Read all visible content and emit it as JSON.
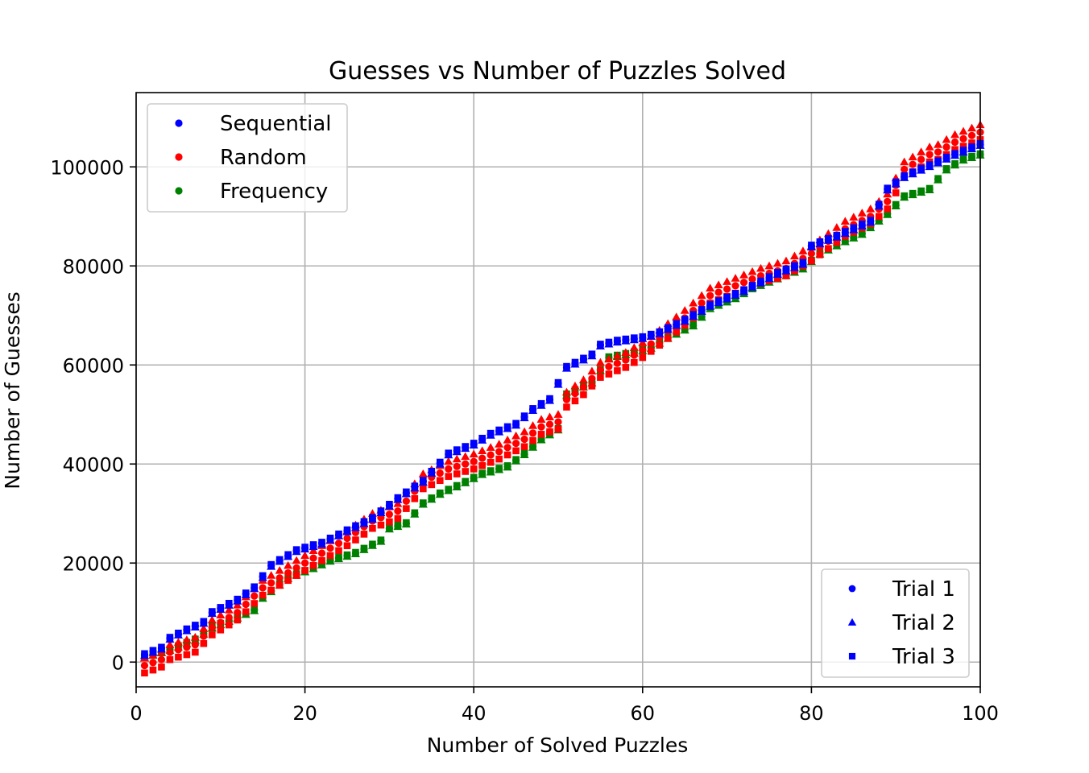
{
  "chart_data": {
    "type": "scatter",
    "title": "Guesses vs Number of Puzzles Solved",
    "xlabel": "Number of Solved Puzzles",
    "ylabel": "Number of Guesses",
    "xlim": [
      0,
      100
    ],
    "ylim": [
      -5000,
      115000
    ],
    "xticks": [
      "0",
      "20",
      "40",
      "60",
      "80",
      "100"
    ],
    "yticks": [
      "0",
      "20000",
      "40000",
      "60000",
      "80000",
      "100000"
    ],
    "xtick_values": [
      0,
      20,
      40,
      60,
      80,
      100
    ],
    "ytick_values": [
      0,
      20000,
      40000,
      60000,
      80000,
      100000
    ],
    "grid": true,
    "colors": {
      "Sequential": "#0000ff",
      "Random": "#ff0000",
      "Frequency": "#008000"
    },
    "markers": {
      "Trial 1": "circle",
      "Trial 2": "triangle",
      "Trial 3": "square"
    },
    "legend_methods": {
      "position": "top-left",
      "entries": [
        "Sequential",
        "Random",
        "Frequency"
      ]
    },
    "legend_trials": {
      "position": "bottom-right",
      "entries": [
        "Trial 1",
        "Trial 2",
        "Trial 3"
      ]
    },
    "anchors": {
      "Sequential": [
        [
          1,
          1500
        ],
        [
          3,
          2800
        ],
        [
          4,
          4800
        ],
        [
          6,
          6500
        ],
        [
          8,
          8000
        ],
        [
          9,
          10000
        ],
        [
          12,
          12500
        ],
        [
          14,
          15000
        ],
        [
          16,
          19500
        ],
        [
          19,
          22500
        ],
        [
          22,
          24000
        ],
        [
          25,
          26500
        ],
        [
          28,
          29000
        ],
        [
          31,
          33000
        ],
        [
          34,
          36500
        ],
        [
          37,
          42000
        ],
        [
          40,
          44000
        ],
        [
          42,
          46000
        ],
        [
          45,
          48000
        ],
        [
          47,
          51000
        ],
        [
          49,
          53000
        ],
        [
          51,
          59500
        ],
        [
          54,
          62000
        ],
        [
          55,
          64000
        ],
        [
          57,
          64800
        ],
        [
          60,
          65500
        ],
        [
          62,
          66500
        ],
        [
          65,
          69000
        ],
        [
          68,
          72000
        ],
        [
          72,
          75000
        ],
        [
          76,
          78500
        ],
        [
          79,
          80500
        ],
        [
          80,
          84000
        ],
        [
          83,
          86000
        ],
        [
          87,
          89000
        ],
        [
          89,
          95500
        ],
        [
          91,
          98000
        ],
        [
          95,
          101000
        ],
        [
          97,
          102500
        ],
        [
          100,
          104500
        ]
      ],
      "Random": [
        [
          1,
          800
        ],
        [
          3,
          2000
        ],
        [
          4,
          3500
        ],
        [
          7,
          5000
        ],
        [
          9,
          8500
        ],
        [
          12,
          11500
        ],
        [
          15,
          16500
        ],
        [
          18,
          19500
        ],
        [
          21,
          22500
        ],
        [
          25,
          26500
        ],
        [
          28,
          30000
        ],
        [
          31,
          32000
        ],
        [
          34,
          38000
        ],
        [
          37,
          40500
        ],
        [
          40,
          42000
        ],
        [
          43,
          44000
        ],
        [
          46,
          46500
        ],
        [
          48,
          49000
        ],
        [
          50,
          50000
        ],
        [
          51,
          54500
        ],
        [
          53,
          57000
        ],
        [
          55,
          60500
        ],
        [
          58,
          62500
        ],
        [
          60,
          64500
        ],
        [
          62,
          67000
        ],
        [
          65,
          71000
        ],
        [
          68,
          75500
        ],
        [
          71,
          77500
        ],
        [
          74,
          79500
        ],
        [
          77,
          81000
        ],
        [
          80,
          84000
        ],
        [
          82,
          86500
        ],
        [
          84,
          89000
        ],
        [
          87,
          91500
        ],
        [
          89,
          94500
        ],
        [
          91,
          101000
        ],
        [
          94,
          104000
        ],
        [
          95,
          104500
        ],
        [
          97,
          106500
        ],
        [
          100,
          108500
        ]
      ]
    },
    "series": [
      {
        "name": "Sequential",
        "trial": "Trial 1",
        "offset": 0,
        "values_ref": "Sequential"
      },
      {
        "name": "Sequential",
        "trial": "Trial 2",
        "offset": -200,
        "values_ref": "Sequential"
      },
      {
        "name": "Sequential",
        "trial": "Trial 3",
        "offset": 200,
        "values_ref": "Sequential"
      },
      {
        "name": "Random",
        "trial": "Trial 1",
        "offset": -1500,
        "values_ref": "Random"
      },
      {
        "name": "Random",
        "trial": "Trial 2",
        "offset": 0,
        "values_ref": "Random"
      },
      {
        "name": "Random",
        "trial": "Trial 3",
        "offset": -3000,
        "values_ref": "Random"
      },
      {
        "name": "Frequency",
        "trial": "Trial 1",
        "offset": 0,
        "values_ref": "Frequency"
      },
      {
        "name": "Frequency",
        "trial": "Trial 2",
        "offset": -150,
        "values_ref": "Frequency"
      },
      {
        "name": "Frequency",
        "trial": "Trial 3",
        "offset": 150,
        "values_ref": "Frequency"
      }
    ],
    "frequency_anchors": [
      [
        1,
        1000
      ],
      [
        4,
        2500
      ],
      [
        7,
        4500
      ],
      [
        9,
        7000
      ],
      [
        12,
        9000
      ],
      [
        14,
        10500
      ],
      [
        15,
        13000
      ],
      [
        18,
        17000
      ],
      [
        21,
        19000
      ],
      [
        23,
        20500
      ],
      [
        26,
        22000
      ],
      [
        29,
        24500
      ],
      [
        30,
        27000
      ],
      [
        32,
        28000
      ],
      [
        34,
        32000
      ],
      [
        36,
        34000
      ],
      [
        38,
        35500
      ],
      [
        41,
        38000
      ],
      [
        44,
        39500
      ],
      [
        46,
        42000
      ],
      [
        48,
        45000
      ],
      [
        50,
        47000
      ],
      [
        51,
        54000
      ],
      [
        54,
        56500
      ],
      [
        56,
        61500
      ],
      [
        59,
        62500
      ],
      [
        61,
        63500
      ],
      [
        63,
        65500
      ],
      [
        66,
        68000
      ],
      [
        68,
        71500
      ],
      [
        71,
        73500
      ],
      [
        73,
        75500
      ],
      [
        76,
        77500
      ],
      [
        79,
        79500
      ],
      [
        81,
        82500
      ],
      [
        84,
        85000
      ],
      [
        86,
        86500
      ],
      [
        89,
        90500
      ],
      [
        91,
        94000
      ],
      [
        94,
        95500
      ],
      [
        96,
        99500
      ],
      [
        98,
        101500
      ],
      [
        100,
        102500
      ]
    ]
  }
}
